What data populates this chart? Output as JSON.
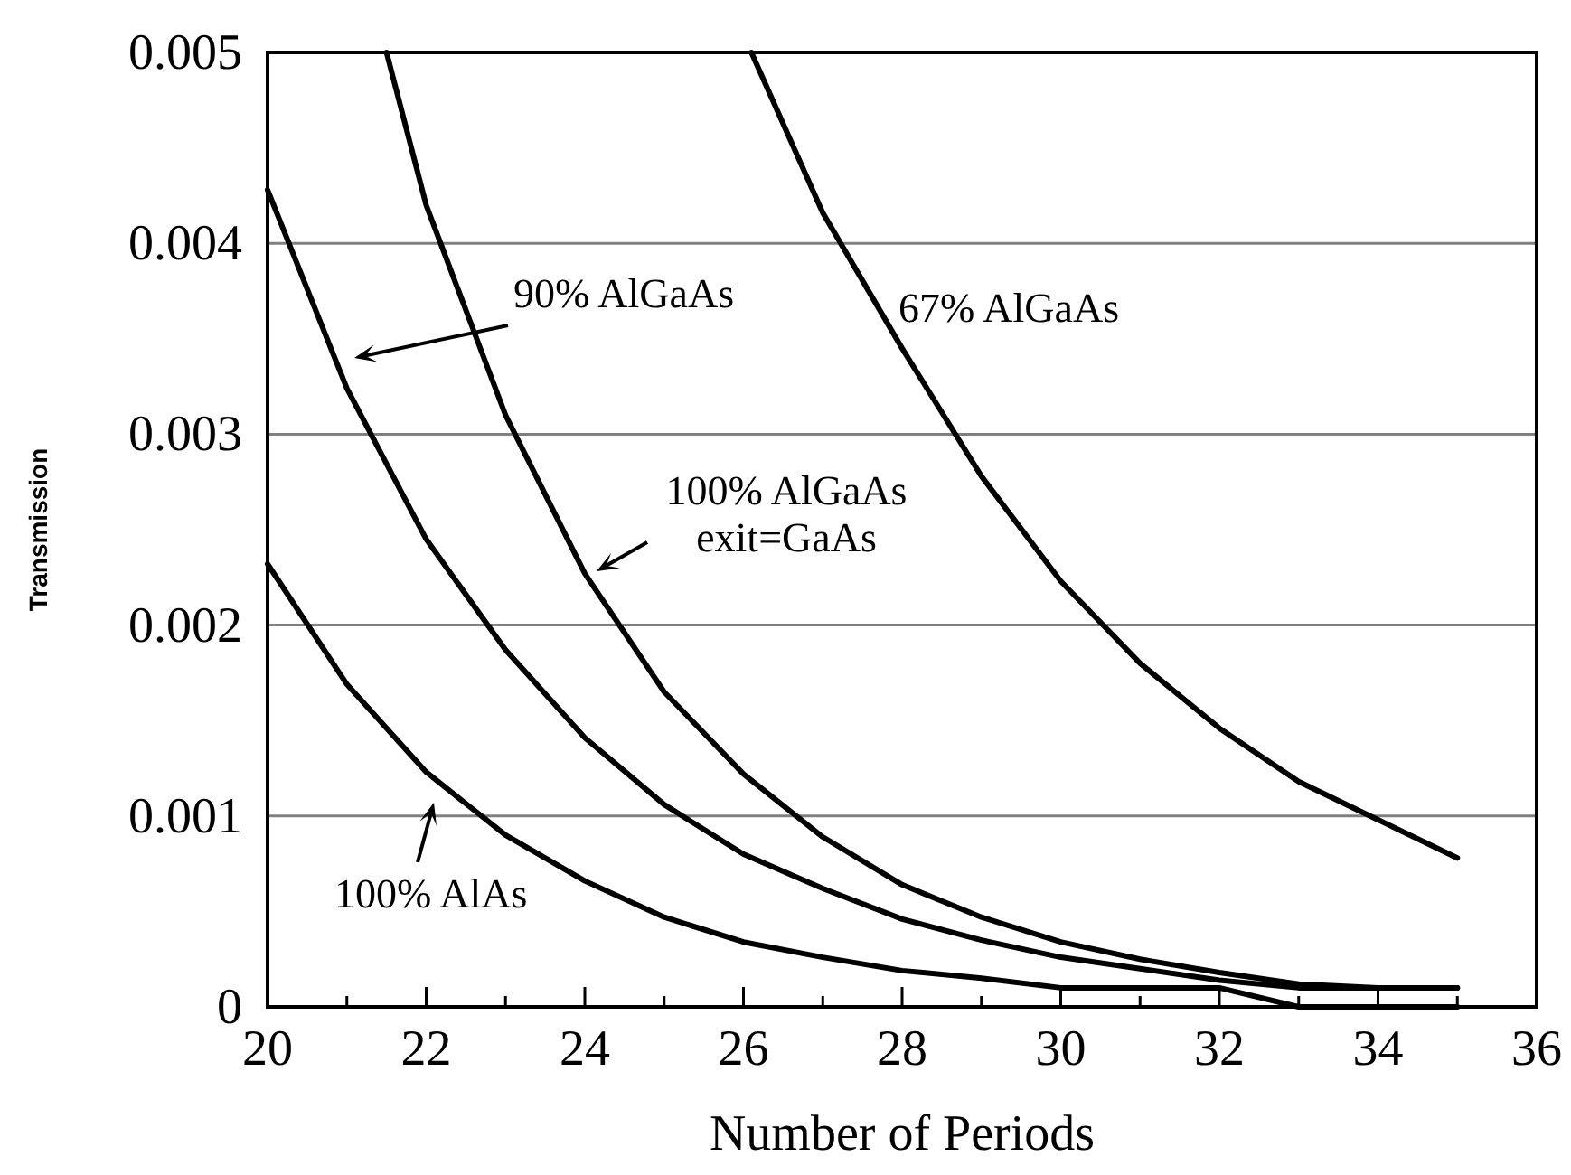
{
  "chart_data": {
    "type": "line",
    "xlabel": "Number of Periods",
    "ylabel": "Transmission",
    "xlim": [
      20,
      36
    ],
    "xticks": [
      20,
      22,
      24,
      26,
      28,
      30,
      32,
      34,
      36
    ],
    "ylim": [
      0,
      0.005
    ],
    "yticks": [
      {
        "value": 0,
        "label": "0"
      },
      0.001,
      0.002,
      0.003,
      0.004,
      0.005
    ],
    "grid": "y",
    "marker": "none",
    "line_style": "solid",
    "series": [
      {
        "color": "#000000",
        "x": [
          20,
          21,
          22,
          23,
          24,
          25,
          26,
          27,
          28,
          29,
          30,
          31,
          32,
          33,
          34,
          35
        ],
        "values": [
          0.00232,
          0.00169,
          0.00123,
          0.0009,
          0.00066,
          0.00047,
          0.00034,
          0.00026,
          0.00019,
          0.00015,
          0.0001,
          0.0001,
          0.0001,
          0,
          0,
          0
        ]
      },
      {
        "color": "#000000",
        "x": [
          20,
          21,
          22,
          23,
          24,
          25,
          26,
          27,
          28,
          29,
          30,
          31,
          32,
          33,
          34,
          35
        ],
        "values": [
          0.00428,
          0.00324,
          0.00245,
          0.00187,
          0.00141,
          0.00106,
          0.0008,
          0.00062,
          0.00046,
          0.00035,
          0.00026,
          0.0002,
          0.00014,
          0.0001,
          0.0001,
          0.0001
        ]
      },
      {
        "color": "#000000",
        "x": [
          21.5,
          22,
          23,
          24,
          25,
          26,
          27,
          28,
          29,
          30,
          31,
          32,
          33,
          34,
          35
        ],
        "values": [
          0.005,
          0.0042,
          0.0031,
          0.00227,
          0.00165,
          0.00122,
          0.00089,
          0.00064,
          0.00047,
          0.00034,
          0.00025,
          0.00018,
          0.00012,
          0.0001,
          0.0001
        ]
      },
      {
        "color": "#000000",
        "x": [
          26.1,
          27,
          28,
          29,
          30,
          31,
          32,
          33,
          34,
          35
        ],
        "values": [
          0.005,
          0.00416,
          0.00345,
          0.00278,
          0.00223,
          0.0018,
          0.00146,
          0.00118,
          0.00098,
          0.00078
        ]
      }
    ],
    "annotations": [
      "90% AlGaAs",
      "100% AlGaAs\nexit=GaAs",
      "100% AlAs",
      "67% AlGaAs"
    ]
  }
}
